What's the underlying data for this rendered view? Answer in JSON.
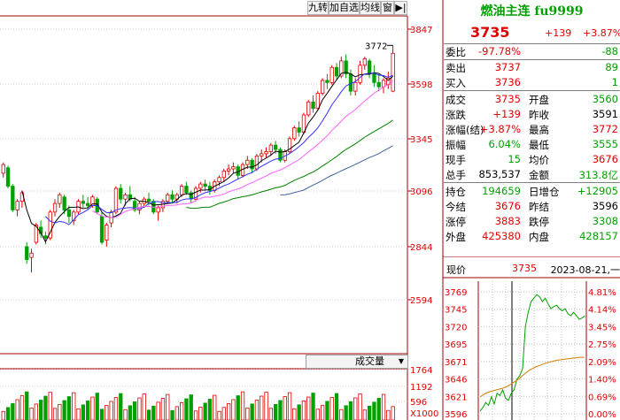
{
  "toolbar": {
    "buttons": [
      "九转",
      "加自选",
      "均线",
      "窗"
    ],
    "arrow": "▶|"
  },
  "kline": {
    "price_axis": [
      "3847",
      "3598",
      "3345",
      "3096",
      "2844",
      "2594"
    ],
    "high_marker": "3772",
    "volume_axis": [
      "1764",
      "1192",
      "596",
      "X1000"
    ],
    "volume_button": "成交量",
    "dropdown_icon": "▼"
  },
  "quote": {
    "title": "燃油主连 fu9999",
    "price": "3735",
    "change": "+139",
    "change_pct": "+3.87%",
    "weibi_label": "委比",
    "weibi_pct": "-97.78%",
    "weibi_val": "-88",
    "sell_label": "卖出",
    "sell_price": "3737",
    "sell_vol": "89",
    "buy_label": "买入",
    "buy_price": "3736",
    "buy_vol": "1",
    "rows": [
      {
        "l1": "成交",
        "v1": "3735",
        "c1": "red",
        "l2": "开盘",
        "v2": "3560",
        "c2": "green"
      },
      {
        "l1": "涨跌",
        "v1": "+139",
        "c1": "red",
        "l2": "昨收",
        "v2": "3591",
        "c2": "black"
      },
      {
        "l1": "涨幅(结)",
        "v1": "+3.87%",
        "c1": "red",
        "l2": "最高",
        "v2": "3772",
        "c2": "red"
      },
      {
        "l1": "振幅",
        "v1": "6.04%",
        "c1": "green",
        "l2": "最低",
        "v2": "3555",
        "c2": "green"
      },
      {
        "l1": "现手",
        "v1": "15",
        "c1": "green",
        "l2": "均价",
        "v2": "3676",
        "c2": "red"
      },
      {
        "l1": "总手",
        "v1": "853,537",
        "c1": "black",
        "l2": "金额",
        "v2": "313.8亿",
        "c2": "green"
      }
    ],
    "rows2": [
      {
        "l1": "持仓",
        "v1": "194659",
        "c1": "green",
        "l2": "日增仓",
        "v2": "+12905",
        "c2": "green"
      },
      {
        "l1": "今结",
        "v1": "3676",
        "c1": "red",
        "l2": "昨结",
        "v2": "3596",
        "c2": "black"
      },
      {
        "l1": "涨停",
        "v1": "3883",
        "c1": "red",
        "l2": "跌停",
        "v2": "3308",
        "c2": "green"
      },
      {
        "l1": "外盘",
        "v1": "425380",
        "c1": "red",
        "l2": "内盘",
        "v2": "428157",
        "c2": "green"
      }
    ]
  },
  "tick": {
    "label": "现价",
    "price": "3735",
    "date": "2023-08-21,一",
    "left_axis": [
      "3769",
      "3745",
      "3720",
      "3695",
      "3671",
      "3646",
      "3621",
      "3596"
    ],
    "right_axis": [
      "4.81%",
      "4.14%",
      "3.45%",
      "2.75%",
      "2.09%",
      "1.40%",
      "0.69%",
      "0.00%"
    ]
  },
  "colors": {
    "up": "#e00000",
    "down": "#00a000",
    "grid": "#c0c0c0"
  }
}
